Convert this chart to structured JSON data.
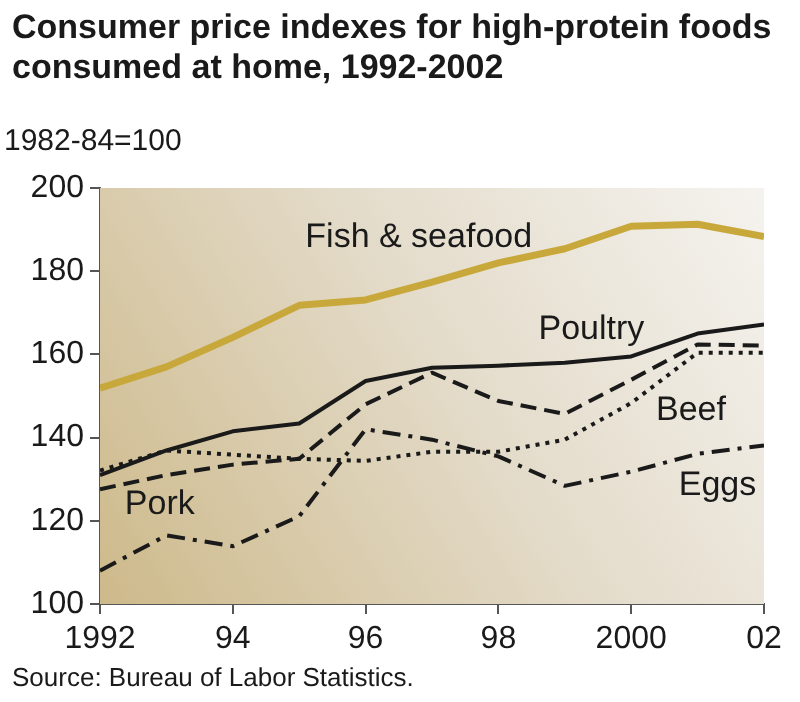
{
  "chart_data": {
    "type": "line",
    "title": "Consumer price indexes for high-protein foods consumed at home, 1992-2002",
    "ylabel": "1982-84=100",
    "x": [
      1992,
      1993,
      1994,
      1995,
      1996,
      1997,
      1998,
      1999,
      2000,
      2001,
      2002
    ],
    "xlim": [
      1992,
      2002
    ],
    "xticks": [
      1992,
      {
        "value": 1994,
        "label": "94"
      },
      {
        "value": 1996,
        "label": "96"
      },
      {
        "value": 1998,
        "label": "98"
      },
      2000,
      {
        "value": 2002,
        "label": "02"
      }
    ],
    "ylim": [
      100,
      200
    ],
    "yticks": [
      100,
      120,
      140,
      160,
      180,
      200
    ],
    "grid": false,
    "legend": false,
    "marker": "none",
    "annotations": [
      "Source:  Bureau of Labor Statistics."
    ],
    "series": [
      {
        "name": "Fish & seafood",
        "color": "#c8a83a",
        "line_style": "solid",
        "values": [
          151.9,
          157,
          164.1,
          171.8,
          173.1,
          177.4,
          182,
          185.4,
          190.8,
          191.3,
          188.3
        ]
      },
      {
        "name": "Poultry",
        "color": "#1a1a1a",
        "line_style": "solid",
        "values": [
          131,
          136.9,
          141.5,
          143.4,
          153.6,
          156.8,
          157.3,
          158,
          159.5,
          165,
          167.2
        ]
      },
      {
        "name": "Beef",
        "color": "#1a1a1a",
        "line_style": "dotted",
        "values": [
          132.1,
          136.9,
          135.9,
          134.9,
          134.4,
          136.6,
          136.6,
          139.5,
          148.3,
          160.4,
          160.4
        ]
      },
      {
        "name": "Pork",
        "color": "#1a1a1a",
        "line_style": "dashed",
        "values": [
          127.6,
          131,
          133.5,
          134.9,
          148,
          155.6,
          148.8,
          145.7,
          153.9,
          162.4,
          162.1
        ]
      },
      {
        "name": "Eggs",
        "color": "#1a1a1a",
        "line_style": "dashdot",
        "values": [
          108,
          116.5,
          113.9,
          121.1,
          142,
          139.5,
          135.5,
          128.4,
          131.8,
          136.1,
          138.1
        ]
      }
    ]
  }
}
